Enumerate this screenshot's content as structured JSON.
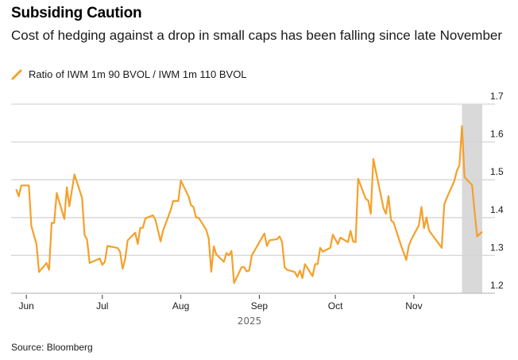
{
  "chart_data": {
    "type": "line",
    "title": "Subsiding Caution",
    "subtitle": "Cost of hedging against a drop in small caps has been falling since late November",
    "legend": [
      {
        "name": "Ratio of IWM 1m 90 BVOL / IWM 1m 110 BVOL",
        "color": "#f5a02a"
      }
    ],
    "legend_placement": "top-left",
    "xlabel": "2025",
    "ylabel": "",
    "x_range": [
      "2025-05-26",
      "2025-11-28"
    ],
    "ylim": [
      1.2,
      1.7
    ],
    "y_ticks": [
      "1.2",
      "1.3",
      "1.4",
      "1.5",
      "1.6",
      "1.7"
    ],
    "y_axis_side": "right",
    "x_ticks": [
      {
        "date": "2025-06-01",
        "label": "Jun"
      },
      {
        "date": "2025-07-01",
        "label": "Jul"
      },
      {
        "date": "2025-08-01",
        "label": "Aug"
      },
      {
        "date": "2025-09-01",
        "label": "Sep"
      },
      {
        "date": "2025-10-01",
        "label": "Oct"
      },
      {
        "date": "2025-11-01",
        "label": "Nov"
      }
    ],
    "grid": true,
    "shaded_region": {
      "start": "2025-11-20",
      "end": "2025-11-28",
      "color": "#d9d9d9"
    },
    "series": [
      {
        "name": "Ratio of IWM 1m 90 BVOL / IWM 1m 110 BVOL",
        "color": "#f5a02a",
        "points": [
          [
            "2025-05-28",
            1.475
          ],
          [
            "2025-05-29",
            1.456
          ],
          [
            "2025-05-30",
            1.485
          ],
          [
            "2025-06-02",
            1.485
          ],
          [
            "2025-06-03",
            1.377
          ],
          [
            "2025-06-05",
            1.33
          ],
          [
            "2025-06-06",
            1.256
          ],
          [
            "2025-06-09",
            1.28
          ],
          [
            "2025-06-10",
            1.262
          ],
          [
            "2025-06-11",
            1.386
          ],
          [
            "2025-06-12",
            1.386
          ],
          [
            "2025-06-13",
            1.465
          ],
          [
            "2025-06-16",
            1.396
          ],
          [
            "2025-06-17",
            1.48
          ],
          [
            "2025-06-18",
            1.43
          ],
          [
            "2025-06-20",
            1.514
          ],
          [
            "2025-06-23",
            1.452
          ],
          [
            "2025-06-24",
            1.354
          ],
          [
            "2025-06-25",
            1.342
          ],
          [
            "2025-06-26",
            1.28
          ],
          [
            "2025-06-30",
            1.292
          ],
          [
            "2025-07-01",
            1.275
          ],
          [
            "2025-07-02",
            1.283
          ],
          [
            "2025-07-03",
            1.325
          ],
          [
            "2025-07-07",
            1.32
          ],
          [
            "2025-07-08",
            1.31
          ],
          [
            "2025-07-09",
            1.265
          ],
          [
            "2025-07-10",
            1.29
          ],
          [
            "2025-07-11",
            1.34
          ],
          [
            "2025-07-14",
            1.36
          ],
          [
            "2025-07-15",
            1.33
          ],
          [
            "2025-07-16",
            1.373
          ],
          [
            "2025-07-17",
            1.373
          ],
          [
            "2025-07-18",
            1.398
          ],
          [
            "2025-07-21",
            1.406
          ],
          [
            "2025-07-22",
            1.394
          ],
          [
            "2025-07-24",
            1.337
          ],
          [
            "2025-07-25",
            1.366
          ],
          [
            "2025-07-28",
            1.42
          ],
          [
            "2025-07-29",
            1.444
          ],
          [
            "2025-07-31",
            1.444
          ],
          [
            "2025-08-01",
            1.498
          ],
          [
            "2025-08-04",
            1.457
          ],
          [
            "2025-08-05",
            1.433
          ],
          [
            "2025-08-06",
            1.428
          ],
          [
            "2025-08-07",
            1.4
          ],
          [
            "2025-08-08",
            1.4
          ],
          [
            "2025-08-11",
            1.368
          ],
          [
            "2025-08-12",
            1.345
          ],
          [
            "2025-08-13",
            1.257
          ],
          [
            "2025-08-14",
            1.324
          ],
          [
            "2025-08-15",
            1.303
          ],
          [
            "2025-08-18",
            1.283
          ],
          [
            "2025-08-19",
            1.306
          ],
          [
            "2025-08-20",
            1.3
          ],
          [
            "2025-08-21",
            1.312
          ],
          [
            "2025-08-22",
            1.227
          ],
          [
            "2025-08-25",
            1.269
          ],
          [
            "2025-08-26",
            1.269
          ],
          [
            "2025-08-27",
            1.258
          ],
          [
            "2025-08-28",
            1.26
          ],
          [
            "2025-08-29",
            1.3
          ],
          [
            "2025-09-03",
            1.358
          ],
          [
            "2025-09-04",
            1.325
          ],
          [
            "2025-09-05",
            1.34
          ],
          [
            "2025-09-08",
            1.343
          ],
          [
            "2025-09-09",
            1.35
          ],
          [
            "2025-09-10",
            1.335
          ],
          [
            "2025-09-11",
            1.268
          ],
          [
            "2025-09-12",
            1.262
          ],
          [
            "2025-09-15",
            1.256
          ],
          [
            "2025-09-16",
            1.243
          ],
          [
            "2025-09-17",
            1.26
          ],
          [
            "2025-09-18",
            1.24
          ],
          [
            "2025-09-19",
            1.277
          ],
          [
            "2025-09-22",
            1.245
          ],
          [
            "2025-09-23",
            1.277
          ],
          [
            "2025-09-24",
            1.277
          ],
          [
            "2025-09-25",
            1.32
          ],
          [
            "2025-09-26",
            1.31
          ],
          [
            "2025-09-29",
            1.32
          ],
          [
            "2025-09-30",
            1.355
          ],
          [
            "2025-10-02",
            1.33
          ],
          [
            "2025-10-03",
            1.347
          ],
          [
            "2025-10-06",
            1.335
          ],
          [
            "2025-10-07",
            1.365
          ],
          [
            "2025-10-08",
            1.337
          ],
          [
            "2025-10-09",
            1.335
          ],
          [
            "2025-10-10",
            1.503
          ],
          [
            "2025-10-13",
            1.45
          ],
          [
            "2025-10-14",
            1.445
          ],
          [
            "2025-10-15",
            1.41
          ],
          [
            "2025-10-16",
            1.555
          ],
          [
            "2025-10-20",
            1.425
          ],
          [
            "2025-10-21",
            1.41
          ],
          [
            "2025-10-22",
            1.457
          ],
          [
            "2025-10-23",
            1.393
          ],
          [
            "2025-10-24",
            1.387
          ],
          [
            "2025-10-27",
            1.325
          ],
          [
            "2025-10-29",
            1.288
          ],
          [
            "2025-10-30",
            1.325
          ],
          [
            "2025-10-31",
            1.342
          ],
          [
            "2025-11-03",
            1.38
          ],
          [
            "2025-11-04",
            1.428
          ],
          [
            "2025-11-05",
            1.372
          ],
          [
            "2025-11-06",
            1.4
          ],
          [
            "2025-11-07",
            1.366
          ],
          [
            "2025-11-12",
            1.32
          ],
          [
            "2025-11-13",
            1.435
          ],
          [
            "2025-11-14",
            1.452
          ],
          [
            "2025-11-17",
            1.497
          ],
          [
            "2025-11-18",
            1.524
          ],
          [
            "2025-11-19",
            1.538
          ],
          [
            "2025-11-20",
            1.642
          ],
          [
            "2025-11-21",
            1.507
          ],
          [
            "2025-11-24",
            1.486
          ],
          [
            "2025-11-25",
            1.415
          ],
          [
            "2025-11-26",
            1.35
          ],
          [
            "2025-11-28",
            1.363
          ]
        ]
      }
    ],
    "source": "Source: Bloomberg"
  }
}
